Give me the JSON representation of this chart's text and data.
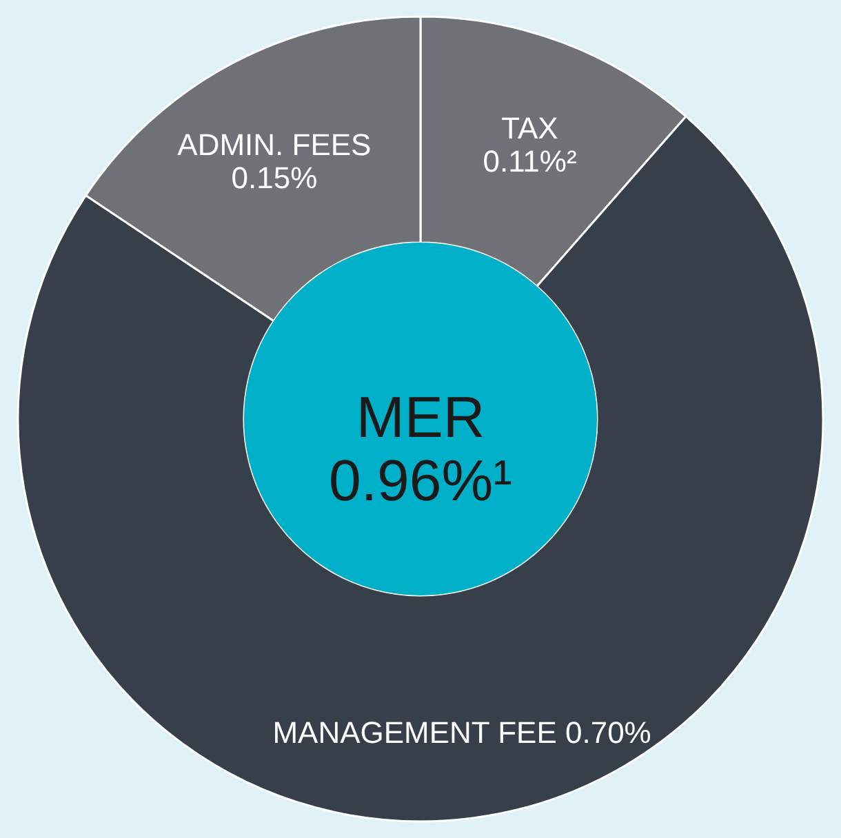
{
  "chart_data": {
    "type": "donut",
    "categories": [
      "TAX",
      "MANAGEMENT FEE",
      "ADMIN. FEES"
    ],
    "values": [
      0.11,
      0.7,
      0.15
    ],
    "value_labels": [
      "0.11%²",
      "0.70%",
      "0.15%"
    ],
    "colors": [
      "#707176",
      "#363f4a",
      "#707176"
    ],
    "annotations": [
      "MER",
      "0.96%¹"
    ]
  }
}
